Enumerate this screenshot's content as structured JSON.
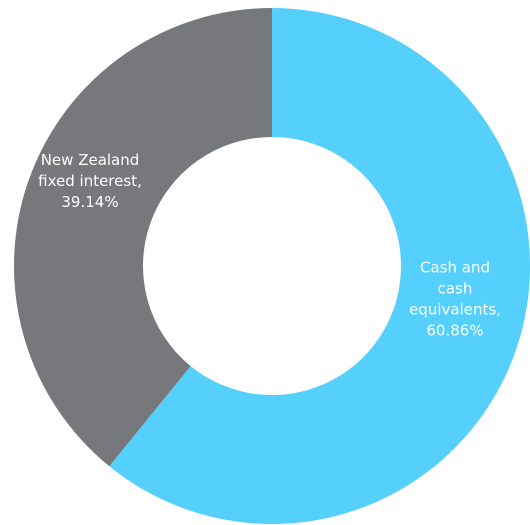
{
  "chart_data": {
    "type": "pie",
    "donut": true,
    "title": "",
    "start_angle_deg": 0,
    "direction": "clockwise",
    "slices": [
      {
        "category": "Cash and cash equivalents",
        "value": 60.86,
        "color": "#55CFFB",
        "label_lines": [
          "Cash and",
          "cash",
          "equivalents,",
          "60.86%"
        ]
      },
      {
        "category": "New Zealand fixed interest",
        "value": 39.14,
        "color": "#77787C",
        "label_lines": [
          "New Zealand",
          "fixed interest,",
          "39.14%"
        ]
      }
    ],
    "legend": "none"
  }
}
